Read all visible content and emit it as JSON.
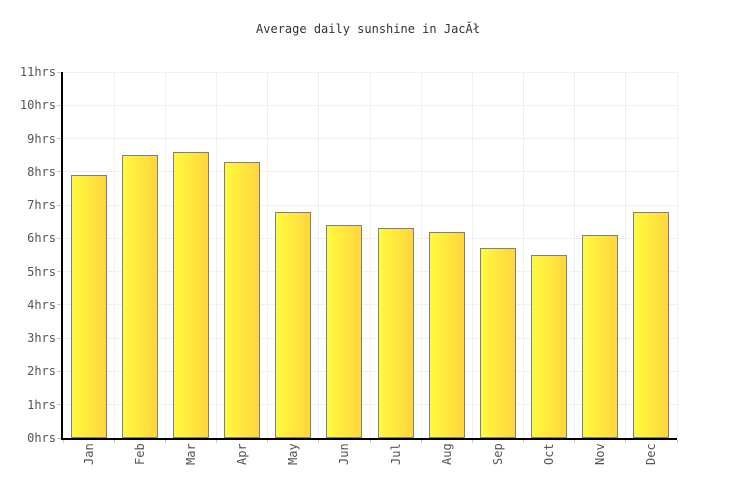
{
  "chart_data": {
    "type": "bar",
    "title": "Average daily sunshine in JacĂł",
    "categories": [
      "Jan",
      "Feb",
      "Mar",
      "Apr",
      "May",
      "Jun",
      "Jul",
      "Aug",
      "Sep",
      "Oct",
      "Nov",
      "Dec"
    ],
    "values": [
      7.9,
      8.5,
      8.6,
      8.3,
      6.8,
      6.4,
      6.3,
      6.2,
      5.7,
      5.5,
      6.1,
      6.8
    ],
    "unit": "hrs",
    "xlabel": "",
    "ylabel": "",
    "ylim": [
      0,
      11
    ],
    "ytick_step": 1,
    "ytick_labels": [
      "0hrs",
      "1hrs",
      "2hrs",
      "3hrs",
      "4hrs",
      "5hrs",
      "6hrs",
      "7hrs",
      "8hrs",
      "9hrs",
      "10hrs",
      "11hrs"
    ],
    "grid": true,
    "legend": "none",
    "colors": {
      "bar_gradient_left": "#fffa3e",
      "bar_gradient_right": "#ffd53e",
      "bar_border": "#7f7f7f",
      "gridline": "#f0f0f0",
      "tick_mark": "#cccccc",
      "axis": "#000000",
      "tick_label": "#545454",
      "title": "#333333",
      "background": "#ffffff"
    }
  }
}
